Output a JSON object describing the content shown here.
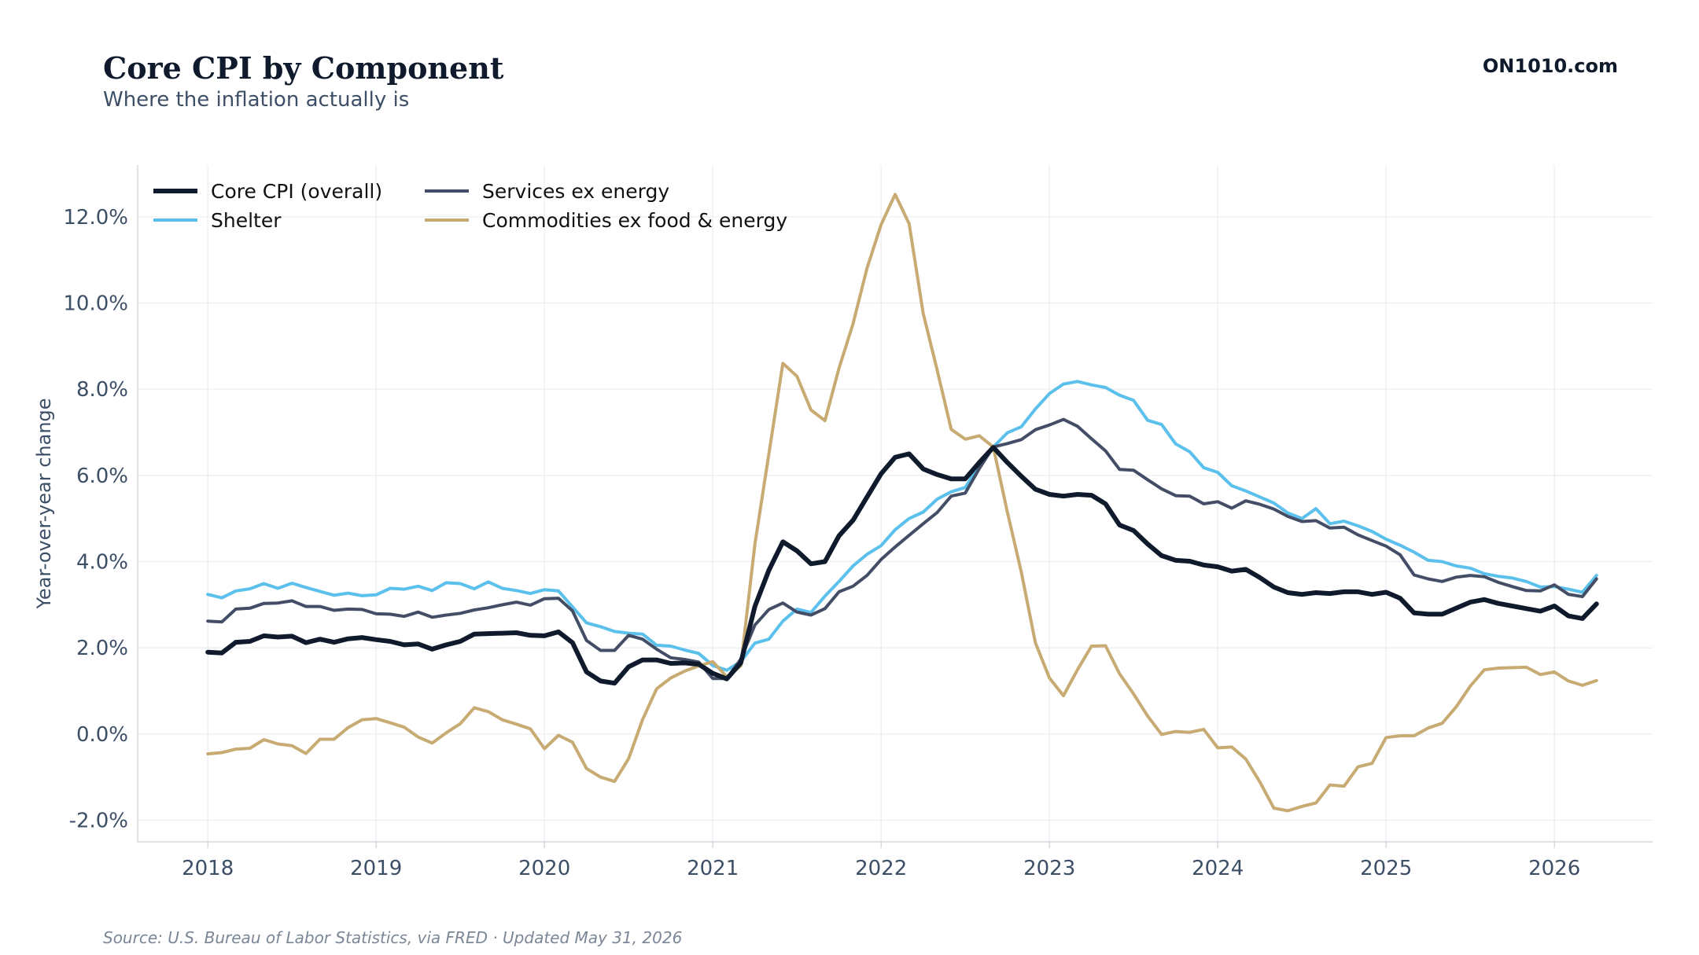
{
  "header": {
    "title": "Core CPI by Component",
    "subtitle": "Where the inflation actually is",
    "brand": "ON1010.com"
  },
  "footer": {
    "source": "Source: U.S. Bureau of Labor Statistics, via FRED · Updated May 31, 2026"
  },
  "chart_data": {
    "type": "line",
    "ylabel": "Year-over-year change",
    "xlabel": "",
    "ylim": [
      -2.5,
      13.2
    ],
    "xlim": [
      "2017-08",
      "2026-08"
    ],
    "yticks": [
      -2,
      0,
      2,
      4,
      6,
      8,
      10,
      12
    ],
    "ytick_labels": [
      "-2.0%",
      "0.0%",
      "2.0%",
      "4.0%",
      "6.0%",
      "8.0%",
      "10.0%",
      "12.0%"
    ],
    "xtick_labels": [
      "2018",
      "2019",
      "2020",
      "2021",
      "2022",
      "2023",
      "2024",
      "2025",
      "2026"
    ],
    "grid": true,
    "legend_position": "top-left",
    "x_start": "2018-01",
    "x_frequency": "monthly",
    "series": [
      {
        "name": "Core CPI (overall)",
        "color": "#0f1b2d",
        "values": [
          1.9,
          1.88,
          2.13,
          2.15,
          2.28,
          2.25,
          2.27,
          2.12,
          2.2,
          2.13,
          2.21,
          2.24,
          2.19,
          2.15,
          2.07,
          2.09,
          1.97,
          2.07,
          2.15,
          2.32,
          2.33,
          2.34,
          2.35,
          2.29,
          2.28,
          2.37,
          2.12,
          1.44,
          1.23,
          1.18,
          1.56,
          1.72,
          1.72,
          1.64,
          1.65,
          1.62,
          1.41,
          1.28,
          1.65,
          2.96,
          3.8,
          4.46,
          4.25,
          3.95,
          4.0,
          4.6,
          4.96,
          5.5,
          6.04,
          6.42,
          6.5,
          6.15,
          6.02,
          5.92,
          5.92,
          6.3,
          6.65,
          6.3,
          5.98,
          5.68,
          5.56,
          5.52,
          5.56,
          5.54,
          5.34,
          4.85,
          4.72,
          4.41,
          4.14,
          4.03,
          4.01,
          3.92,
          3.88,
          3.78,
          3.82,
          3.63,
          3.41,
          3.28,
          3.24,
          3.28,
          3.26,
          3.3,
          3.3,
          3.24,
          3.29,
          3.15,
          2.81,
          2.78,
          2.78,
          2.92,
          3.06,
          3.12,
          3.03,
          2.97,
          2.91,
          2.85,
          2.97,
          2.74,
          2.68,
          3.02
        ]
      },
      {
        "name": "Shelter",
        "color": "#5bc0eb",
        "values": [
          3.24,
          3.16,
          3.32,
          3.37,
          3.49,
          3.38,
          3.5,
          3.4,
          3.31,
          3.22,
          3.27,
          3.21,
          3.23,
          3.38,
          3.36,
          3.43,
          3.33,
          3.51,
          3.49,
          3.37,
          3.53,
          3.38,
          3.33,
          3.26,
          3.35,
          3.32,
          2.95,
          2.58,
          2.49,
          2.38,
          2.34,
          2.32,
          2.06,
          2.04,
          1.95,
          1.87,
          1.59,
          1.48,
          1.68,
          2.11,
          2.2,
          2.62,
          2.9,
          2.82,
          3.2,
          3.54,
          3.9,
          4.17,
          4.37,
          4.74,
          5.0,
          5.15,
          5.45,
          5.62,
          5.72,
          6.23,
          6.66,
          6.99,
          7.13,
          7.54,
          7.9,
          8.12,
          8.18,
          8.1,
          8.04,
          7.86,
          7.74,
          7.28,
          7.18,
          6.73,
          6.55,
          6.18,
          6.07,
          5.76,
          5.64,
          5.5,
          5.36,
          5.13,
          5.0,
          5.23,
          4.88,
          4.94,
          4.83,
          4.7,
          4.52,
          4.38,
          4.22,
          4.03,
          4.0,
          3.9,
          3.85,
          3.72,
          3.66,
          3.62,
          3.54,
          3.41,
          3.42,
          3.36,
          3.29,
          3.68
        ]
      },
      {
        "name": "Services ex energy",
        "color": "#434e66",
        "values": [
          2.62,
          2.6,
          2.9,
          2.92,
          3.03,
          3.04,
          3.09,
          2.96,
          2.96,
          2.87,
          2.9,
          2.89,
          2.79,
          2.78,
          2.73,
          2.83,
          2.71,
          2.76,
          2.8,
          2.88,
          2.93,
          3.0,
          3.06,
          2.99,
          3.14,
          3.15,
          2.86,
          2.17,
          1.94,
          1.94,
          2.29,
          2.2,
          1.97,
          1.77,
          1.73,
          1.67,
          1.29,
          1.29,
          1.74,
          2.53,
          2.89,
          3.04,
          2.83,
          2.76,
          2.91,
          3.3,
          3.43,
          3.68,
          4.05,
          4.34,
          4.61,
          4.88,
          5.14,
          5.52,
          5.59,
          6.16,
          6.66,
          6.74,
          6.83,
          7.06,
          7.17,
          7.3,
          7.14,
          6.85,
          6.57,
          6.14,
          6.12,
          5.9,
          5.69,
          5.53,
          5.52,
          5.34,
          5.39,
          5.24,
          5.41,
          5.33,
          5.22,
          5.05,
          4.93,
          4.95,
          4.78,
          4.8,
          4.62,
          4.49,
          4.36,
          4.16,
          3.69,
          3.6,
          3.54,
          3.64,
          3.68,
          3.65,
          3.52,
          3.42,
          3.33,
          3.32,
          3.46,
          3.24,
          3.19,
          3.6
        ]
      },
      {
        "name": "Commodities ex food & energy",
        "color": "#c8ab72",
        "values": [
          -0.46,
          -0.43,
          -0.35,
          -0.33,
          -0.13,
          -0.23,
          -0.27,
          -0.45,
          -0.12,
          -0.12,
          0.15,
          0.33,
          0.36,
          0.26,
          0.16,
          -0.07,
          -0.21,
          0.03,
          0.24,
          0.61,
          0.52,
          0.33,
          0.23,
          0.12,
          -0.34,
          -0.03,
          -0.19,
          -0.8,
          -1.0,
          -1.1,
          -0.57,
          0.34,
          1.05,
          1.3,
          1.46,
          1.58,
          1.68,
          1.33,
          1.58,
          4.4,
          6.5,
          8.6,
          8.3,
          7.52,
          7.27,
          8.49,
          9.52,
          10.81,
          11.82,
          12.52,
          11.84,
          9.76,
          8.44,
          7.07,
          6.84,
          6.92,
          6.66,
          5.15,
          3.75,
          2.12,
          1.3,
          0.89,
          1.49,
          2.04,
          2.05,
          1.4,
          0.93,
          0.42,
          -0.01,
          0.06,
          0.04,
          0.11,
          -0.32,
          -0.3,
          -0.58,
          -1.11,
          -1.72,
          -1.78,
          -1.68,
          -1.6,
          -1.18,
          -1.21,
          -0.76,
          -0.68,
          -0.08,
          -0.04,
          -0.04,
          0.14,
          0.25,
          0.63,
          1.11,
          1.49,
          1.53,
          1.54,
          1.55,
          1.38,
          1.44,
          1.23,
          1.13,
          1.24
        ]
      }
    ]
  }
}
